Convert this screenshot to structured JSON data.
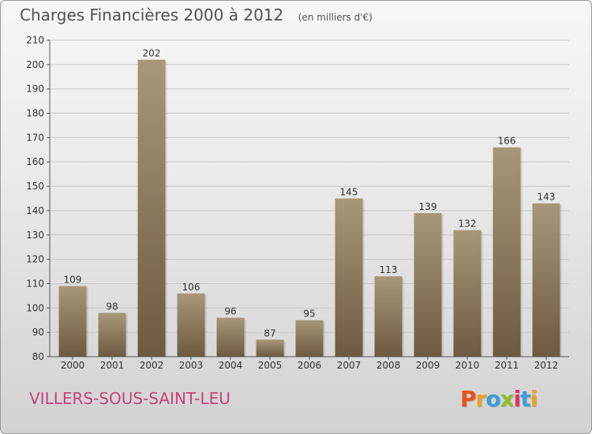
{
  "header": {
    "title": "Charges Financières 2000 à 2012",
    "unit": "(en milliers d'€)"
  },
  "footer": {
    "commune": "VILLERS-SOUS-SAINT-LEU",
    "logo_letters": [
      "P",
      "r",
      "o",
      "x",
      "i",
      "t",
      "i"
    ],
    "logo_colors": [
      "#e7531b",
      "#f0a020",
      "#3aa0dd",
      "#8cbf2a",
      "#e2335f",
      "#3aa0dd",
      "#f0a020"
    ]
  },
  "colors": {
    "bar_top": "#a89778",
    "bar_bottom": "#6e5a3f",
    "commune_text": "#c8427a",
    "axis": "#555555",
    "grid": "#c8c8c8"
  },
  "chart_data": {
    "type": "bar",
    "categories": [
      "2000",
      "2001",
      "2002",
      "2003",
      "2004",
      "2005",
      "2006",
      "2007",
      "2008",
      "2009",
      "2010",
      "2011",
      "2012"
    ],
    "values": [
      109,
      98,
      202,
      106,
      96,
      87,
      95,
      145,
      113,
      139,
      132,
      166,
      143
    ],
    "title": "Charges Financières 2000 à 2012",
    "subtitle": "(en milliers d'€)",
    "xlabel": "",
    "ylabel": "",
    "ylim": [
      80,
      210
    ],
    "yticks": [
      80,
      90,
      100,
      110,
      120,
      130,
      140,
      150,
      160,
      170,
      180,
      190,
      200,
      210
    ],
    "grid": true
  }
}
